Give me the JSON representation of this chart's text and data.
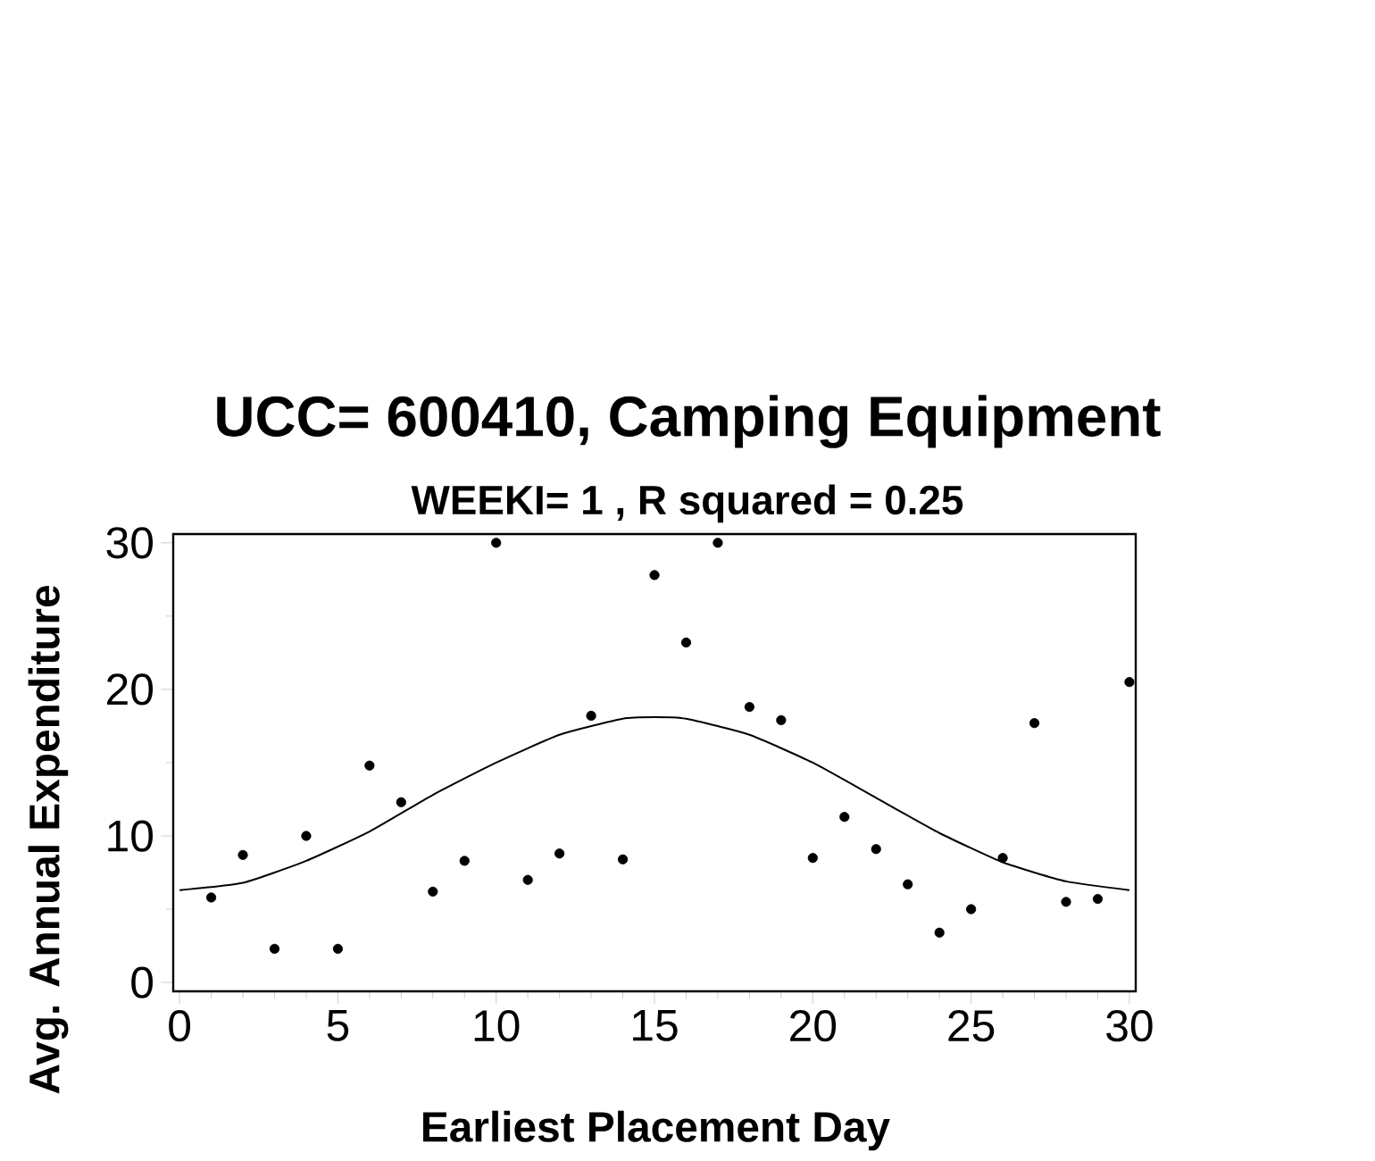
{
  "chart_data": {
    "type": "scatter",
    "title": "UCC= 600410,  Camping Equipment",
    "subtitle": "WEEKI= 1 ,  R squared  =   0.25",
    "xlabel": "Earliest Placement Day",
    "ylabel": "Avg. Annual Expenditure",
    "xlim": [
      -0.2,
      30.2
    ],
    "ylim": [
      -0.6,
      30.6
    ],
    "xticks": [
      0,
      5,
      10,
      15,
      20,
      25,
      30
    ],
    "yticks": [
      0,
      10,
      20,
      30
    ],
    "grid": false,
    "series": [
      {
        "marker": "circle",
        "color": "#000000",
        "x": [
          1,
          2,
          3,
          4,
          5,
          6,
          7,
          8,
          9,
          10,
          11,
          12,
          13,
          14,
          15,
          16,
          17,
          18,
          19,
          20,
          21,
          22,
          23,
          24,
          25,
          26,
          27,
          28,
          29,
          30
        ],
        "values": [
          5.8,
          8.7,
          2.3,
          10.0,
          2.3,
          14.8,
          12.3,
          6.2,
          8.3,
          30.0,
          7.0,
          8.8,
          18.2,
          8.4,
          27.8,
          23.2,
          30.0,
          18.8,
          17.9,
          8.5,
          11.3,
          9.1,
          6.7,
          3.4,
          5.0,
          8.5,
          17.7,
          5.5,
          5.7,
          20.5
        ]
      },
      {
        "type": "line",
        "marker": "none",
        "line_style": "solid",
        "color": "#000000",
        "x": [
          0,
          2,
          4,
          6,
          8,
          10,
          12,
          14,
          15,
          16,
          18,
          20,
          22,
          24,
          26,
          28,
          30
        ],
        "values": [
          6.3,
          6.8,
          8.3,
          10.3,
          12.8,
          15.0,
          16.9,
          18.0,
          18.1,
          18.0,
          16.9,
          15.0,
          12.6,
          10.2,
          8.2,
          6.9,
          6.3
        ]
      }
    ]
  }
}
